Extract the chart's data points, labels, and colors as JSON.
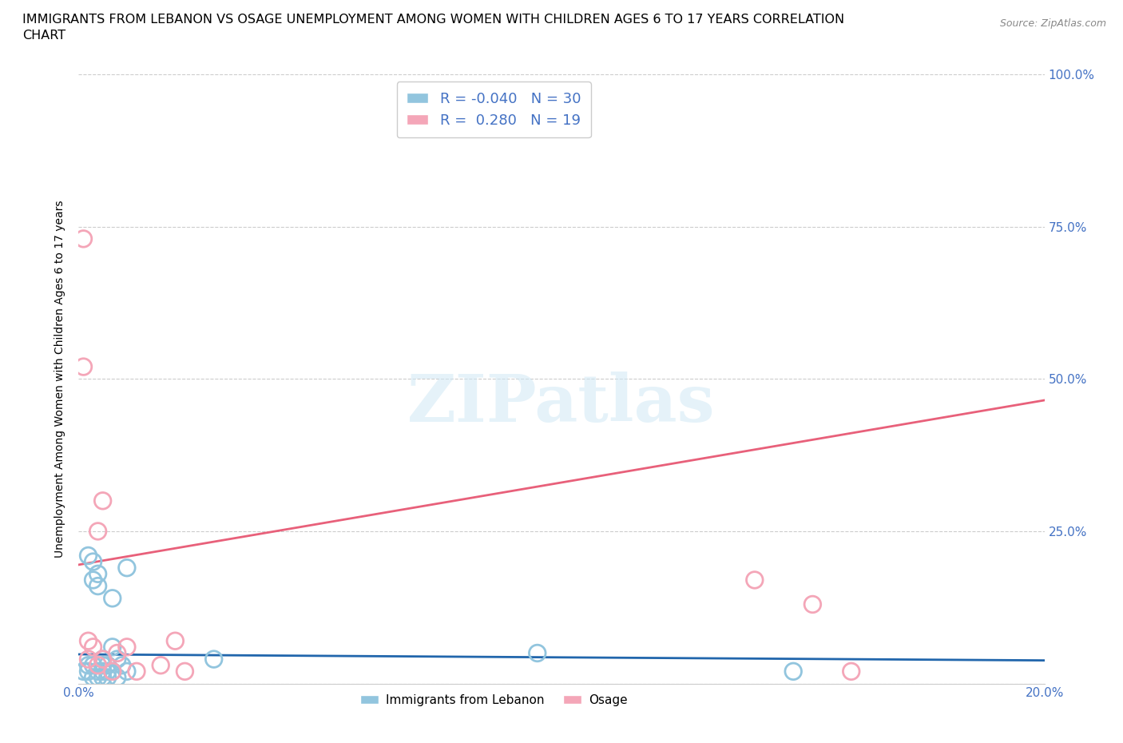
{
  "title_line1": "IMMIGRANTS FROM LEBANON VS OSAGE UNEMPLOYMENT AMONG WOMEN WITH CHILDREN AGES 6 TO 17 YEARS CORRELATION",
  "title_line2": "CHART",
  "source": "Source: ZipAtlas.com",
  "ylabel": "Unemployment Among Women with Children Ages 6 to 17 years",
  "xlim": [
    0.0,
    0.2
  ],
  "ylim": [
    0.0,
    1.0
  ],
  "watermark_text": "ZIPatlas",
  "blue_R": -0.04,
  "blue_N": 30,
  "pink_R": 0.28,
  "pink_N": 19,
  "blue_color": "#92c5de",
  "pink_color": "#f4a6b8",
  "blue_line_color": "#2166ac",
  "pink_line_color": "#e8607a",
  "blue_scatter_x": [
    0.001,
    0.002,
    0.002,
    0.002,
    0.003,
    0.003,
    0.003,
    0.003,
    0.004,
    0.004,
    0.004,
    0.004,
    0.005,
    0.005,
    0.005,
    0.005,
    0.006,
    0.006,
    0.006,
    0.007,
    0.007,
    0.007,
    0.008,
    0.008,
    0.009,
    0.01,
    0.01,
    0.028,
    0.095,
    0.148
  ],
  "blue_scatter_y": [
    0.02,
    0.21,
    0.03,
    0.02,
    0.2,
    0.17,
    0.03,
    0.01,
    0.18,
    0.16,
    0.02,
    0.01,
    0.04,
    0.03,
    0.02,
    0.01,
    0.03,
    0.02,
    0.01,
    0.14,
    0.06,
    0.02,
    0.04,
    0.01,
    0.03,
    0.19,
    0.02,
    0.04,
    0.05,
    0.02
  ],
  "pink_scatter_x": [
    0.001,
    0.001,
    0.002,
    0.002,
    0.003,
    0.004,
    0.004,
    0.005,
    0.005,
    0.007,
    0.008,
    0.01,
    0.012,
    0.017,
    0.02,
    0.022,
    0.14,
    0.152,
    0.16
  ],
  "pink_scatter_y": [
    0.73,
    0.52,
    0.07,
    0.04,
    0.06,
    0.25,
    0.03,
    0.3,
    0.04,
    0.02,
    0.05,
    0.06,
    0.02,
    0.03,
    0.07,
    0.02,
    0.17,
    0.13,
    0.02
  ],
  "pink_trendline_x": [
    0.0,
    0.2
  ],
  "pink_trendline_y": [
    0.195,
    0.465
  ],
  "blue_trendline_x": [
    0.0,
    0.2
  ],
  "blue_trendline_y": [
    0.048,
    0.038
  ],
  "legend_label_blue": "Immigrants from Lebanon",
  "legend_label_pink": "Osage",
  "background_color": "#ffffff",
  "grid_color": "#cccccc"
}
